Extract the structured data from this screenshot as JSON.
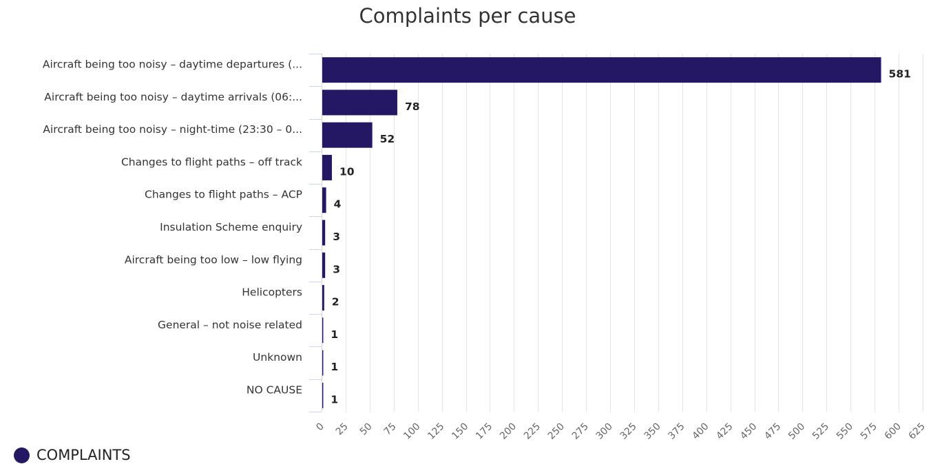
{
  "chart_data": {
    "type": "bar",
    "orientation": "horizontal",
    "title": "Complaints per cause",
    "categories": [
      "Aircraft being too noisy – daytime departures (...",
      "Aircraft being too noisy – daytime arrivals (06:...",
      "Aircraft being too noisy – night-time (23:30 – 0...",
      "Changes to flight paths – off track",
      "Changes to flight paths – ACP",
      "Insulation Scheme enquiry",
      "Aircraft being too low – low flying",
      "Helicopters",
      "General – not noise related",
      "Unknown",
      "NO CAUSE"
    ],
    "series": [
      {
        "name": "COMPLAINTS",
        "color": "#241764",
        "values": [
          581,
          78,
          52,
          10,
          4,
          3,
          3,
          2,
          1,
          1,
          1
        ]
      }
    ],
    "xlim": [
      0,
      625
    ],
    "x_ticks": [
      0,
      25,
      50,
      75,
      100,
      125,
      150,
      175,
      200,
      225,
      250,
      275,
      300,
      325,
      350,
      375,
      400,
      425,
      450,
      475,
      500,
      525,
      550,
      575,
      600,
      625
    ],
    "grid": true,
    "legend_position": "bottom-left",
    "data_labels": true
  },
  "colors": {
    "bar": "#241764",
    "grid": "#e3e3e3",
    "axis": "#ccd6eb"
  }
}
